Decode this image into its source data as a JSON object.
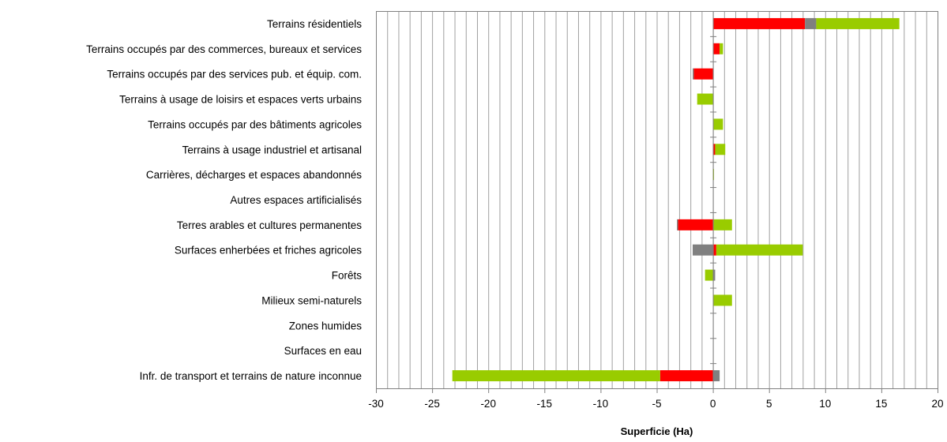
{
  "chart_data": {
    "type": "bar",
    "orientation": "horizontal",
    "stacked": true,
    "xlabel": "Superficie (Ha)",
    "xlim": [
      -30,
      20
    ],
    "major_tick_step": 5,
    "minor_gridline_step": 1,
    "grid": true,
    "legend": "none",
    "categories": [
      "Terrains résidentiels",
      "Terrains occupés par des commerces, bureaux et services",
      "Terrains occupés par des services pub. et équip. com.",
      "Terrains à usage de loisirs et espaces verts urbains",
      "Terrains occupés par des bâtiments agricoles",
      "Terrains à usage industriel et artisanal",
      "Carrières, décharges et espaces abandonnés",
      "Autres espaces artificialisés",
      "Terres arables et cultures permanentes",
      "Surfaces enherbées et friches agricoles",
      "Forêts",
      "Milieux semi-naturels",
      "Zones humides",
      "Surfaces en eau",
      "Infr. de transport et terrains de nature inconnue"
    ],
    "series": [
      {
        "color": "#ff0000",
        "values": [
          8.2,
          0.6,
          -1.7,
          0,
          0,
          0.2,
          0,
          0,
          -3.1,
          0.3,
          0,
          0,
          0,
          0,
          -4.7
        ]
      },
      {
        "color": "#808080",
        "values": [
          1.0,
          0,
          -0.1,
          0,
          0,
          0,
          0,
          0,
          -0.1,
          -1.8,
          0.2,
          0,
          0,
          0,
          0.6
        ]
      },
      {
        "color": "#99cc00",
        "values": [
          7.4,
          0.3,
          0,
          -1.4,
          0.9,
          0.9,
          0.1,
          0,
          1.7,
          7.7,
          -0.7,
          1.7,
          0,
          0,
          -18.5
        ]
      }
    ]
  }
}
